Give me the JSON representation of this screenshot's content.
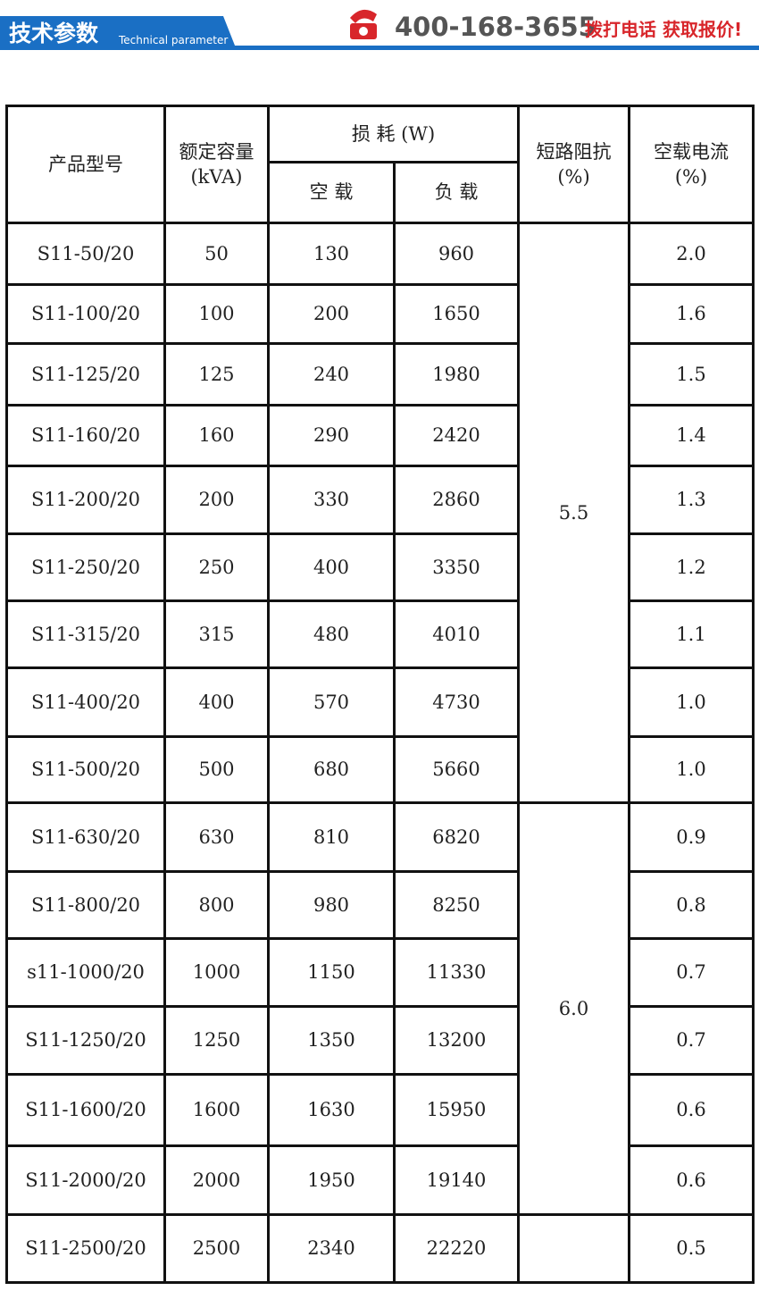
{
  "header": {
    "title": "技术参数",
    "subtitle": "Technical parameter",
    "phone": "400-168-3655",
    "call": "拨打电话 获取报价!"
  },
  "table": {
    "headers": {
      "model": "产品型号",
      "capacity": "额定容量",
      "capacity_unit": "(kVA)",
      "loss": "损 耗 (W)",
      "no_load": "空 载",
      "load": "负 载",
      "impedance": "短路阻抗",
      "impedance_unit": "(%)",
      "current": "空载电流",
      "current_unit": "(%)"
    },
    "rows": [
      [
        "S11-50/20",
        "50",
        "130",
        "960",
        "2.0"
      ],
      [
        "S11-100/20",
        "100",
        "200",
        "1650",
        "1.6"
      ],
      [
        "S11-125/20",
        "125",
        "240",
        "1980",
        "1.5"
      ],
      [
        "S11-160/20",
        "160",
        "290",
        "2420",
        "1.4"
      ],
      [
        "S11-200/20",
        "200",
        "330",
        "2860",
        "1.3"
      ],
      [
        "S11-250/20",
        "250",
        "400",
        "3350",
        "1.2"
      ],
      [
        "S11-315/20",
        "315",
        "480",
        "4010",
        "1.1"
      ],
      [
        "S11-400/20",
        "400",
        "570",
        "4730",
        "1.0"
      ],
      [
        "S11-500/20",
        "500",
        "680",
        "5660",
        "1.0"
      ],
      [
        "S11-630/20",
        "630",
        "810",
        "6820",
        "0.9"
      ],
      [
        "S11-800/20",
        "800",
        "980",
        "8250",
        "0.8"
      ],
      [
        "s11-1000/20",
        "1000",
        "1150",
        "11330",
        "0.7"
      ],
      [
        "S11-1250/20",
        "1250",
        "1350",
        "13200",
        "0.7"
      ],
      [
        "S11-1600/20",
        "1600",
        "1630",
        "15950",
        "0.6"
      ],
      [
        "S11-2000/20",
        "2000",
        "1950",
        "19140",
        "0.6"
      ],
      [
        "S11-2500/20",
        "2500",
        "2340",
        "22220",
        "0.5"
      ]
    ],
    "impedance": [
      "5.5",
      "6.0"
    ]
  }
}
